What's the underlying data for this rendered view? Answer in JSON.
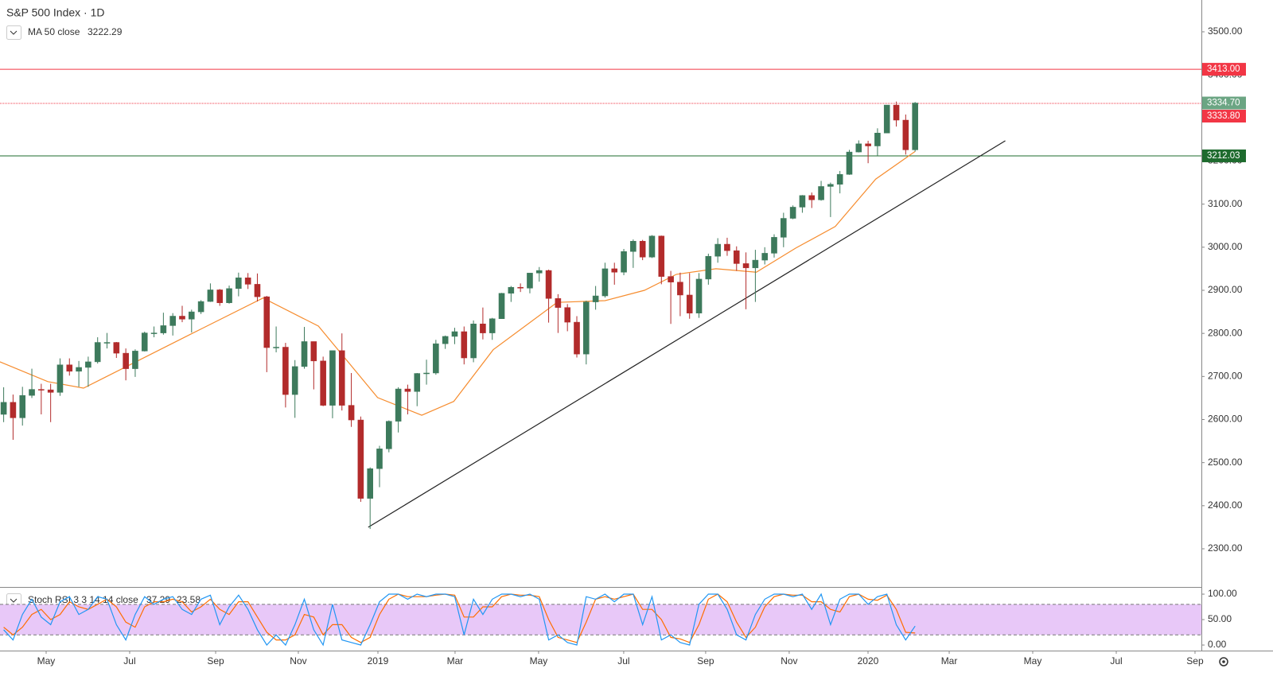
{
  "chart_data": {
    "type": "candlestick",
    "title": "S&P 500 Index · 1D",
    "up_color": "#3d7a5c",
    "down_color": "#b22b2b",
    "xlim": [
      -0.39,
      127.47
    ],
    "xticks": [
      {
        "value": 4.52,
        "label": "May"
      },
      {
        "value": 13.41,
        "label": "Jul"
      },
      {
        "value": 22.56,
        "label": "Sep"
      },
      {
        "value": 31.36,
        "label": "Nov"
      },
      {
        "value": 39.83,
        "label": "2019"
      },
      {
        "value": 48.04,
        "label": "Mar"
      },
      {
        "value": 56.93,
        "label": "May"
      },
      {
        "value": 65.99,
        "label": "Jul"
      },
      {
        "value": 74.71,
        "label": "Sep"
      },
      {
        "value": 83.6,
        "label": "Nov"
      },
      {
        "value": 91.99,
        "label": "2020"
      },
      {
        "value": 100.63,
        "label": "Mar"
      },
      {
        "value": 109.52,
        "label": "May"
      },
      {
        "value": 118.41,
        "label": "Jul"
      },
      {
        "value": 126.79,
        "label": "Sep"
      }
    ],
    "ylim": [
      2211.4,
      3573.8
    ],
    "yticks": [
      {
        "value": 2300,
        "label": "2300.00"
      },
      {
        "value": 2400,
        "label": "2400.00"
      },
      {
        "value": 2500,
        "label": "2500.00"
      },
      {
        "value": 2600,
        "label": "2600.00"
      },
      {
        "value": 2700,
        "label": "2700.00"
      },
      {
        "value": 2800,
        "label": "2800.00"
      },
      {
        "value": 2900,
        "label": "2900.00"
      },
      {
        "value": 3000,
        "label": "3000.00"
      },
      {
        "value": 3100,
        "label": "3100.00"
      },
      {
        "value": 3200,
        "label": "3200.00"
      },
      {
        "value": 3300,
        "label": "3300.00"
      },
      {
        "value": 3400,
        "label": "3400.00"
      },
      {
        "value": 3500,
        "label": "3500.00"
      }
    ],
    "open": [
      2612,
      2640,
      2604,
      2656,
      2670,
      2669,
      2663,
      2727,
      2712,
      2721,
      2734,
      2779,
      2779,
      2754,
      2718,
      2759,
      2801,
      2801,
      2818,
      2840,
      2833,
      2850,
      2874,
      2901,
      2871,
      2904,
      2929,
      2914,
      2885,
      2767,
      2768,
      2658,
      2723,
      2781,
      2736,
      2633,
      2760,
      2633,
      2599,
      2417,
      2486,
      2532,
      2596,
      2671,
      2665,
      2707,
      2708,
      2776,
      2793,
      2804,
      2743,
      2822,
      2801,
      2834,
      2893,
      2907,
      2905,
      2940,
      2946,
      2881,
      2860,
      2826,
      2752,
      2873,
      2887,
      2950,
      2942,
      2990,
      3014,
      2977,
      3026,
      2932,
      2919,
      2889,
      2847,
      2926,
      2979,
      3007,
      2992,
      2962,
      2952,
      2970,
      2986,
      3023,
      3067,
      3093,
      3120,
      3110,
      3141,
      3146,
      3169,
      3221,
      3240,
      3235,
      3265,
      3330,
      3295,
      3226
    ],
    "high": [
      2675,
      2658,
      2676,
      2718,
      2683,
      2683,
      2742,
      2742,
      2736,
      2746,
      2791,
      2801,
      2780,
      2765,
      2763,
      2804,
      2816,
      2848,
      2847,
      2864,
      2855,
      2877,
      2916,
      2903,
      2911,
      2941,
      2940,
      2939,
      2887,
      2816,
      2778,
      2738,
      2815,
      2781,
      2746,
      2760,
      2800,
      2708,
      2607,
      2489,
      2539,
      2598,
      2675,
      2681,
      2708,
      2739,
      2785,
      2795,
      2813,
      2816,
      2830,
      2860,
      2836,
      2894,
      2910,
      2916,
      2940,
      2954,
      2948,
      2891,
      2868,
      2840,
      2876,
      2910,
      2964,
      2964,
      2996,
      3018,
      3017,
      3028,
      3027,
      2945,
      2941,
      2940,
      2940,
      2985,
      3021,
      3022,
      3002,
      2988,
      2994,
      3000,
      3030,
      3080,
      3097,
      3121,
      3127,
      3154,
      3150,
      3177,
      3226,
      3248,
      3247,
      3276,
      3330,
      3338,
      3308,
      3337
    ],
    "low": [
      2594,
      2553,
      2586,
      2650,
      2612,
      2594,
      2655,
      2702,
      2676,
      2676,
      2730,
      2765,
      2743,
      2691,
      2699,
      2758,
      2791,
      2797,
      2795,
      2826,
      2802,
      2845,
      2873,
      2864,
      2869,
      2886,
      2903,
      2874,
      2710,
      2756,
      2628,
      2604,
      2718,
      2670,
      2631,
      2603,
      2621,
      2583,
      2409,
      2346,
      2443,
      2524,
      2570,
      2612,
      2631,
      2681,
      2704,
      2764,
      2775,
      2728,
      2733,
      2786,
      2785,
      2834,
      2873,
      2896,
      2893,
      2920,
      2825,
      2801,
      2805,
      2744,
      2728,
      2855,
      2883,
      2913,
      2935,
      2952,
      2970,
      2975,
      2914,
      2822,
      2840,
      2834,
      2836,
      2913,
      2964,
      2980,
      2945,
      2856,
      2873,
      2960,
      2976,
      3000,
      3065,
      3080,
      3091,
      3108,
      3070,
      3125,
      3168,
      3220,
      3195,
      3213,
      3265,
      3280,
      3215,
      3222
    ],
    "close": [
      2640,
      2604,
      2656,
      2670,
      2669,
      2663,
      2727,
      2712,
      2721,
      2734,
      2779,
      2779,
      2754,
      2718,
      2759,
      2801,
      2801,
      2818,
      2840,
      2833,
      2850,
      2874,
      2901,
      2871,
      2904,
      2929,
      2914,
      2885,
      2767,
      2768,
      2658,
      2723,
      2781,
      2736,
      2633,
      2760,
      2633,
      2599,
      2417,
      2486,
      2532,
      2596,
      2671,
      2665,
      2707,
      2708,
      2776,
      2793,
      2804,
      2743,
      2822,
      2801,
      2834,
      2893,
      2907,
      2905,
      2940,
      2946,
      2881,
      2860,
      2826,
      2752,
      2873,
      2887,
      2950,
      2942,
      2990,
      3014,
      2977,
      3026,
      2932,
      2919,
      2889,
      2847,
      2926,
      2979,
      3007,
      2992,
      2962,
      2952,
      2970,
      2986,
      3023,
      3067,
      3093,
      3120,
      3110,
      3141,
      3146,
      3169,
      3221,
      3240,
      3235,
      3265,
      3330,
      3295,
      3226,
      3334.7
    ],
    "ma": {
      "name": "MA 50 close",
      "color": "#f68c2e",
      "x": [
        -0.4,
        4.7,
        8.5,
        19.9,
        27.6,
        33.5,
        39.8,
        44.5,
        47.9,
        52.1,
        58.9,
        64,
        68.2,
        71.6,
        75.8,
        80.1,
        84.3,
        88.5,
        92.8,
        97
      ],
      "values": [
        2734,
        2688,
        2673,
        2798,
        2882,
        2817,
        2651,
        2610,
        2642,
        2762,
        2872,
        2876,
        2900,
        2937,
        2950,
        2942,
        2998,
        3048,
        3158,
        3222.29
      ]
    },
    "trendline": {
      "color": "#222222",
      "x": [
        38.8,
        106.6
      ],
      "values": [
        2350,
        3247
      ]
    },
    "levels": [
      {
        "value": 3413,
        "label": "3413.00",
        "color": "#f23645",
        "style": "solid"
      },
      {
        "value": 3334.7,
        "label": "3334.70",
        "color": "#6ba583",
        "style": "label"
      },
      {
        "value": 3333.8,
        "label": "3333.80",
        "color": "#f23645",
        "style": "dotted"
      },
      {
        "value": 3212.03,
        "label": "3212.03",
        "color": "#1e6b2e",
        "style": "solid"
      }
    ],
    "stoch": {
      "name": "Stoch RSI 3 3 14 14 close",
      "ylim": [
        -10.9,
        114.1
      ],
      "yticks": [
        {
          "value": 0,
          "label": "0.00"
        },
        {
          "value": 50,
          "label": "50.00"
        },
        {
          "value": 100,
          "label": "100.00"
        }
      ],
      "band": [
        20,
        80
      ],
      "band_color": "#e8c8f8",
      "k_color": "#2196f3",
      "d_color": "#ff6d00",
      "k": [
        30,
        10,
        60,
        90,
        55,
        40,
        85,
        95,
        60,
        70,
        95,
        90,
        40,
        10,
        60,
        95,
        80,
        90,
        95,
        70,
        60,
        90,
        98,
        40,
        75,
        98,
        70,
        30,
        0,
        20,
        0,
        40,
        90,
        30,
        0,
        80,
        10,
        5,
        0,
        40,
        85,
        100,
        100,
        90,
        100,
        95,
        100,
        100,
        95,
        20,
        90,
        60,
        90,
        100,
        100,
        95,
        100,
        90,
        10,
        20,
        5,
        0,
        95,
        90,
        100,
        85,
        100,
        100,
        40,
        95,
        10,
        20,
        5,
        0,
        80,
        100,
        100,
        70,
        20,
        10,
        60,
        90,
        100,
        100,
        95,
        100,
        70,
        100,
        40,
        90,
        100,
        100,
        80,
        95,
        100,
        40,
        10,
        37.29
      ],
      "d": [
        35,
        20,
        35,
        60,
        70,
        50,
        60,
        85,
        75,
        70,
        80,
        90,
        75,
        45,
        35,
        75,
        85,
        85,
        90,
        85,
        65,
        75,
        90,
        70,
        60,
        85,
        85,
        55,
        25,
        10,
        10,
        20,
        60,
        55,
        20,
        40,
        40,
        15,
        5,
        15,
        60,
        90,
        100,
        95,
        95,
        95,
        98,
        100,
        98,
        55,
        55,
        75,
        75,
        95,
        100,
        98,
        98,
        95,
        50,
        15,
        10,
        5,
        45,
        90,
        95,
        90,
        95,
        100,
        70,
        70,
        50,
        15,
        12,
        5,
        40,
        90,
        100,
        85,
        45,
        15,
        35,
        75,
        95,
        100,
        98,
        98,
        85,
        85,
        70,
        65,
        95,
        100,
        90,
        88,
        98,
        70,
        25,
        23.58
      ]
    }
  }
}
